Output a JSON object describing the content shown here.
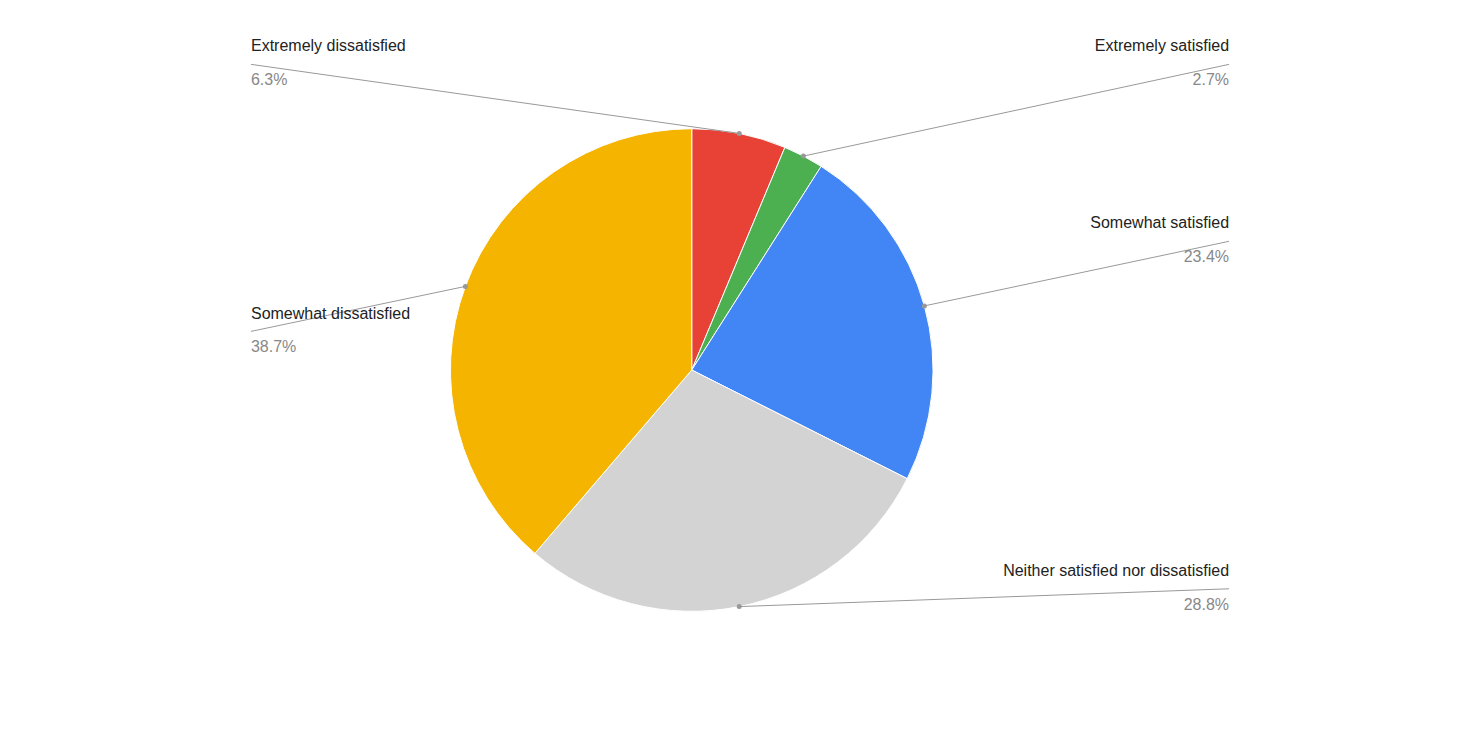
{
  "chart_data": {
    "type": "pie",
    "categories": [
      "Extremely dissatisfied",
      "Extremely satisfied",
      "Somewhat satisfied",
      "Neither satisfied nor dissatisfied",
      "Somewhat dissatisfied"
    ],
    "values": [
      6.3,
      2.7,
      23.4,
      28.8,
      38.7
    ],
    "value_labels": [
      "6.3%",
      "2.7%",
      "23.4%",
      "28.8%",
      "38.7%"
    ],
    "colors": [
      "#E84136",
      "#4CAF50",
      "#4285F4",
      "#D3D3D3",
      "#F4B400"
    ],
    "data_labels": true
  }
}
